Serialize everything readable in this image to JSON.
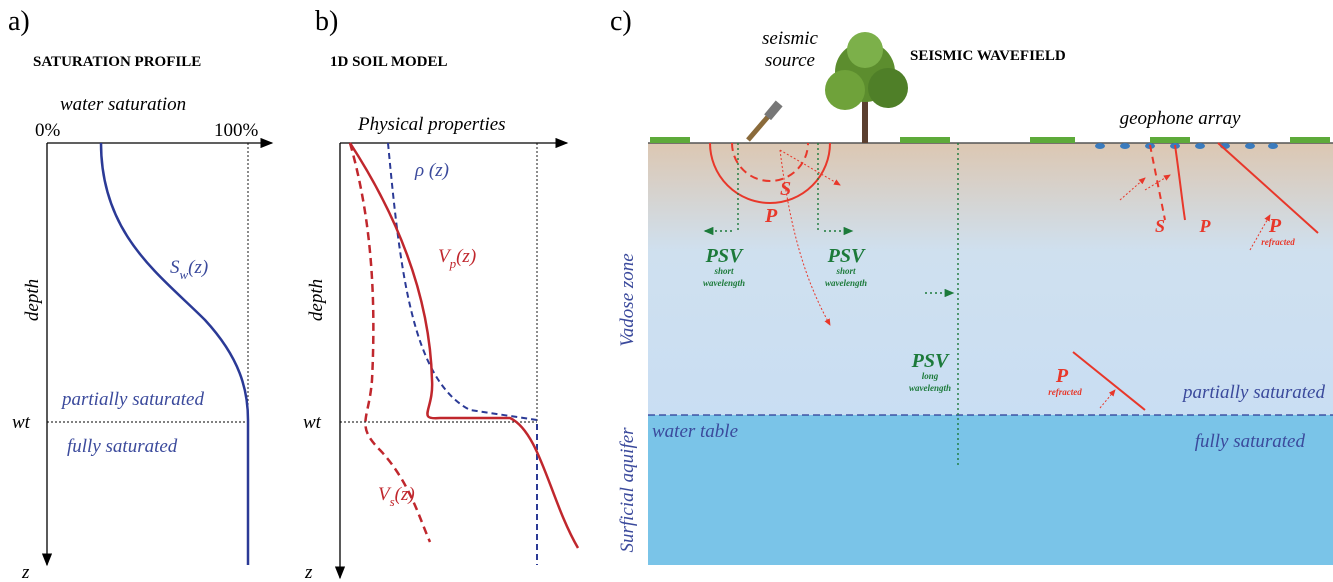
{
  "panels": [
    {
      "label": "a)",
      "title": "SATURATION PROFILE",
      "x_axis": "water saturation",
      "x_ticks": [
        "0%",
        "100%"
      ],
      "y_axis": "depth",
      "y_end": "z",
      "wt": "wt",
      "curve": {
        "symbol": "S",
        "subscript": "w",
        "arg": "(z)"
      },
      "zones": [
        "partially saturated",
        "fully saturated"
      ]
    },
    {
      "label": "b)",
      "title": "1D SOIL MODEL",
      "x_axis": "Physical properties",
      "y_axis": "depth",
      "y_end": "z",
      "wt": "wt",
      "curves": [
        {
          "symbol": "ρ",
          "arg": " (z)"
        },
        {
          "symbol": "V",
          "subscript": "p",
          "arg": "(z)"
        },
        {
          "symbol": "V",
          "subscript": "s",
          "arg": "(z)"
        }
      ]
    },
    {
      "label": "c)",
      "title": "SEISMIC WAVEFIELD",
      "source": [
        "seismic",
        "source"
      ],
      "geophones": "geophone array",
      "zones": {
        "vadose": "Vadose zone",
        "aquifer": "Surficial aquifer",
        "partial": "partially saturated",
        "full": "fully saturated",
        "water_table": "water table"
      },
      "waves": [
        {
          "name": "S"
        },
        {
          "name": "P"
        },
        {
          "name": "PSV",
          "note": [
            "short",
            "wavelength"
          ]
        },
        {
          "name": "PSV",
          "note": [
            "short",
            "wavelength"
          ]
        },
        {
          "name": "PSV",
          "note": [
            "long",
            "wavelength"
          ]
        },
        {
          "name": "S"
        },
        {
          "name": "P"
        },
        {
          "name": "P",
          "note": [
            "refracted"
          ]
        },
        {
          "name": "P",
          "note": [
            "refracted"
          ]
        }
      ]
    }
  ]
}
